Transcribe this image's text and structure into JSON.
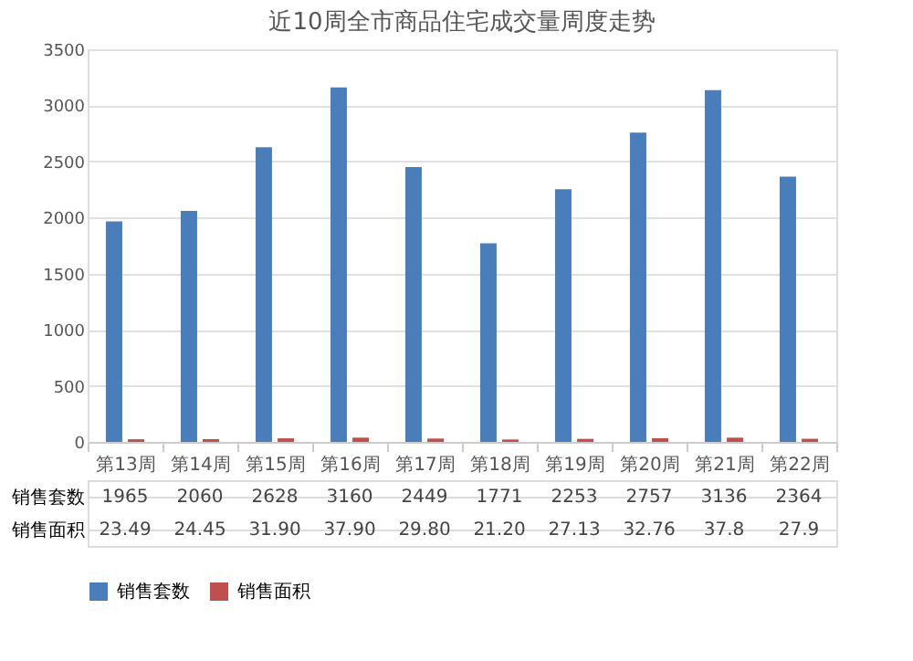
{
  "chart_data": {
    "type": "bar",
    "title": "近10周全市商品住宅成交量周度走势",
    "categories": [
      "第13周",
      "第14周",
      "第15周",
      "第16周",
      "第17周",
      "第18周",
      "第19周",
      "第20周",
      "第21周",
      "第22周"
    ],
    "series": [
      {
        "name": "销售套数",
        "color": "#4a7ebb",
        "values": [
          1965,
          2060,
          2628,
          3160,
          2449,
          1771,
          2253,
          2757,
          3136,
          2364
        ],
        "value_labels": [
          "1965",
          "2060",
          "2628",
          "3160",
          "2449",
          "1771",
          "2253",
          "2757",
          "3136",
          "2364"
        ]
      },
      {
        "name": "销售面积",
        "color": "#c0504d",
        "values": [
          23.49,
          24.45,
          31.9,
          37.9,
          29.8,
          21.2,
          27.13,
          32.76,
          37.8,
          27.9
        ],
        "value_labels": [
          "23.49",
          "24.45",
          "31.90",
          "37.90",
          "29.80",
          "21.20",
          "27.13",
          "32.76",
          "37.8",
          "27.9"
        ]
      }
    ],
    "ylim": [
      0,
      3500
    ],
    "yticks": [
      0,
      500,
      1000,
      1500,
      2000,
      2500,
      3000,
      3500
    ],
    "grid": "y",
    "legend": "bottom"
  }
}
